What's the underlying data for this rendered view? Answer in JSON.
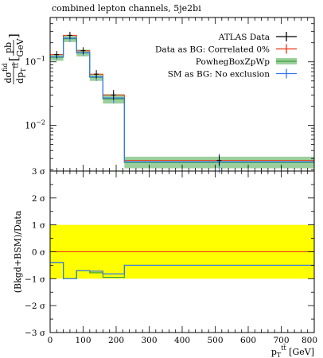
{
  "chart_data": [
    {
      "type": "line",
      "title": "combined lepton channels, 5je2bi",
      "ylabel": {
        "num_base": "dσ",
        "num_sup": "fid",
        "den_base": "dp",
        "den_sub": "T",
        "den_sup": "tt̄",
        "unit_num": "pb",
        "unit_den": "GeV"
      },
      "xlim": [
        0,
        800
      ],
      "ylim": [
        0.0019,
        0.5
      ],
      "yscale": "log",
      "ytick_labels": [
        {
          "value": 0.1,
          "base": "10",
          "exp": "−1"
        },
        {
          "value": 0.01,
          "base": "10",
          "exp": "−2"
        }
      ],
      "bin_edges": [
        0,
        40,
        80,
        120,
        160,
        225,
        800
      ],
      "legend_position": "top-right",
      "legend": [
        {
          "label": "ATLAS Data",
          "color": "#000000"
        },
        {
          "label": "Data as BG: Correlated 0%",
          "color": "#ee3311"
        },
        {
          "label": "PowhegBoxZpWp",
          "color": "#3da13d",
          "band": "#9ccf9c"
        },
        {
          "label": "SM as BG: No exclusion",
          "color": "#3377ee"
        }
      ],
      "series": [
        {
          "name": "ATLAS Data",
          "color": "#000000",
          "x": [
            20,
            60,
            100,
            140,
            192,
            512
          ],
          "y": [
            0.13,
            0.262,
            0.15,
            0.064,
            0.03,
            0.0028
          ],
          "yerr_lo": [
            0.016,
            0.032,
            0.018,
            0.009,
            0.005,
            0.0005
          ],
          "yerr_hi": [
            0.018,
            0.036,
            0.02,
            0.01,
            0.006,
            0.0006
          ]
        },
        {
          "name": "Data as BG: Correlated 0%",
          "color": "#ee3311",
          "values": [
            0.13,
            0.262,
            0.15,
            0.064,
            0.03,
            0.0028
          ]
        },
        {
          "name": "PowhegBoxZpWp",
          "color": "#3da13d",
          "values": [
            0.118,
            0.232,
            0.138,
            0.057,
            0.026,
            0.0026
          ],
          "band_lo": [
            0.104,
            0.205,
            0.122,
            0.05,
            0.022,
            0.0021
          ],
          "band_hi": [
            0.133,
            0.262,
            0.156,
            0.065,
            0.031,
            0.0032
          ]
        },
        {
          "name": "SM as BG: No exclusion",
          "color": "#3377ee",
          "values": [
            0.12,
            0.236,
            0.14,
            0.058,
            0.027,
            0.00265
          ],
          "yerr_lo": [
            0.014,
            0.03,
            0.016,
            0.008,
            0.005,
            0.0009
          ],
          "yerr_hi": [
            0.016,
            0.034,
            0.018,
            0.009,
            0.006,
            0.0009
          ]
        }
      ]
    },
    {
      "type": "line",
      "xlabel": {
        "base": "p",
        "sub": "T",
        "sup": "tt̄",
        "unit": " [GeV]"
      },
      "ylabel": "(Bkgd+BSM)/Data",
      "xlim": [
        0,
        800
      ],
      "ylim": [
        -3,
        3
      ],
      "x_ticks": [
        "0",
        "100",
        "200",
        "300",
        "400",
        "500",
        "600",
        "700",
        "800"
      ],
      "y_ticks": [
        {
          "value": 3,
          "label": "3 σ"
        },
        {
          "value": 2,
          "label": "2 σ"
        },
        {
          "value": 1,
          "label": "1 σ"
        },
        {
          "value": 0,
          "label": "0 σ"
        },
        {
          "value": -1,
          "label": "−1 σ"
        },
        {
          "value": -2,
          "label": "−2 σ"
        },
        {
          "value": -3,
          "label": "−3 σ"
        }
      ],
      "band": {
        "from": -1,
        "to": 1,
        "color": "#ffff00"
      },
      "reference_line": {
        "value": 0,
        "color": "#ee3311"
      },
      "series": [
        {
          "name": "PowhegBoxZpWp",
          "color": "#3da13d",
          "values": [
            -0.4,
            -1.0,
            -0.7,
            -0.78,
            -0.95,
            -0.5
          ]
        },
        {
          "name": "SM as BG: No exclusion",
          "color": "#3377ee",
          "values": [
            -0.4,
            -1.0,
            -0.7,
            -0.72,
            -0.82,
            -0.5
          ]
        }
      ]
    }
  ]
}
